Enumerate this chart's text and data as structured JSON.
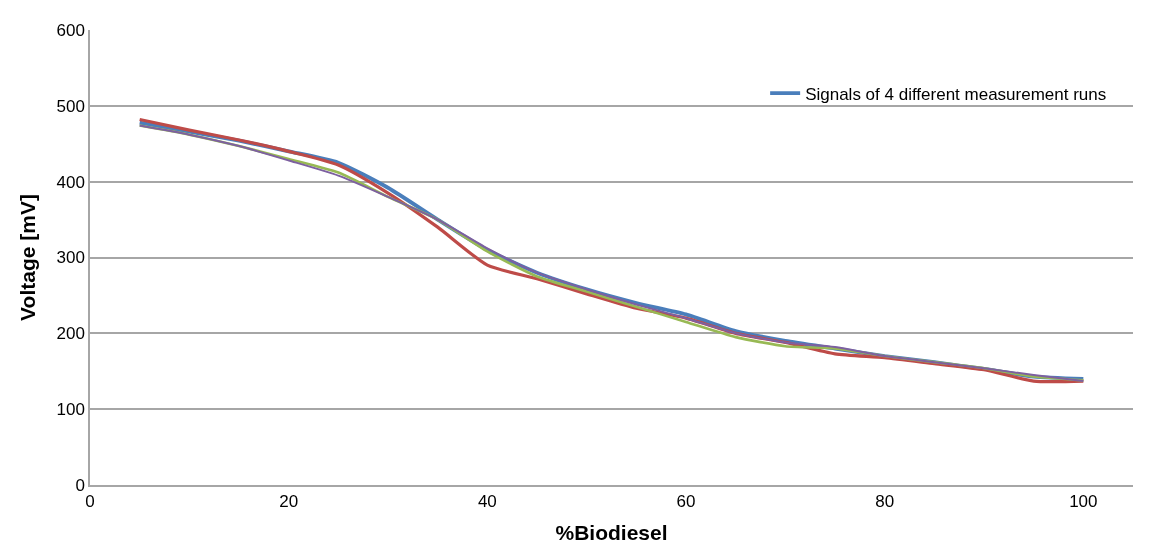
{
  "chart_data": {
    "type": "line",
    "xlabel": "%Biodiesel",
    "ylabel": "Voltage [mV]",
    "x": [
      5,
      10,
      15,
      20,
      25,
      30,
      35,
      40,
      45,
      50,
      55,
      60,
      65,
      70,
      75,
      80,
      85,
      90,
      95,
      100
    ],
    "series": [
      {
        "name": "Signals of 4 different measurement runs",
        "color": "#4a7ebb",
        "values": [
          478,
          466,
          454,
          440,
          425,
          392,
          350,
          310,
          280,
          258,
          240,
          225,
          203,
          190,
          180,
          170,
          162,
          153,
          143,
          140
        ]
      },
      {
        "color": "#be4b48",
        "values": [
          482,
          468,
          455,
          440,
          422,
          385,
          340,
          290,
          272,
          252,
          233,
          220,
          200,
          188,
          173,
          168,
          160,
          152,
          137,
          137
        ]
      },
      {
        "color": "#98b954",
        "values": [
          474,
          462,
          447,
          430,
          412,
          380,
          350,
          308,
          275,
          255,
          235,
          215,
          195,
          183,
          180,
          170,
          162,
          154,
          143,
          138
        ]
      },
      {
        "color": "#7d60a0",
        "values": [
          474,
          462,
          447,
          428,
          408,
          380,
          350,
          312,
          280,
          258,
          238,
          220,
          200,
          188,
          182,
          170,
          162,
          154,
          145,
          137
        ]
      }
    ],
    "xlim": [
      0,
      105
    ],
    "xticks": [
      0,
      20,
      40,
      60,
      80,
      100
    ],
    "ylim": [
      0,
      600
    ],
    "yticks": [
      0,
      100,
      200,
      300,
      400,
      500,
      600
    ],
    "grid": "y",
    "legend": "top right",
    "marker": "none",
    "line_style": "solid"
  }
}
